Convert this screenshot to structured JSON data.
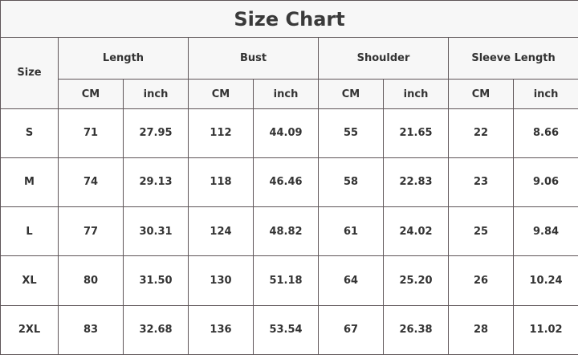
{
  "title": "Size Chart",
  "size_header": "Size",
  "groups": [
    "Length",
    "Bust",
    "Shoulder",
    "Sleeve Length"
  ],
  "units": [
    "CM",
    "inch"
  ],
  "rows": [
    {
      "size": "S",
      "values": [
        "71",
        "27.95",
        "112",
        "44.09",
        "55",
        "21.65",
        "22",
        "8.66"
      ]
    },
    {
      "size": "M",
      "values": [
        "74",
        "29.13",
        "118",
        "46.46",
        "58",
        "22.83",
        "23",
        "9.06"
      ]
    },
    {
      "size": "L",
      "values": [
        "77",
        "30.31",
        "124",
        "48.82",
        "61",
        "24.02",
        "25",
        "9.84"
      ]
    },
    {
      "size": "XL",
      "values": [
        "80",
        "31.50",
        "130",
        "51.18",
        "64",
        "25.20",
        "26",
        "10.24"
      ]
    },
    {
      "size": "2XL",
      "values": [
        "83",
        "32.68",
        "136",
        "53.54",
        "67",
        "26.38",
        "28",
        "11.02"
      ]
    }
  ]
}
